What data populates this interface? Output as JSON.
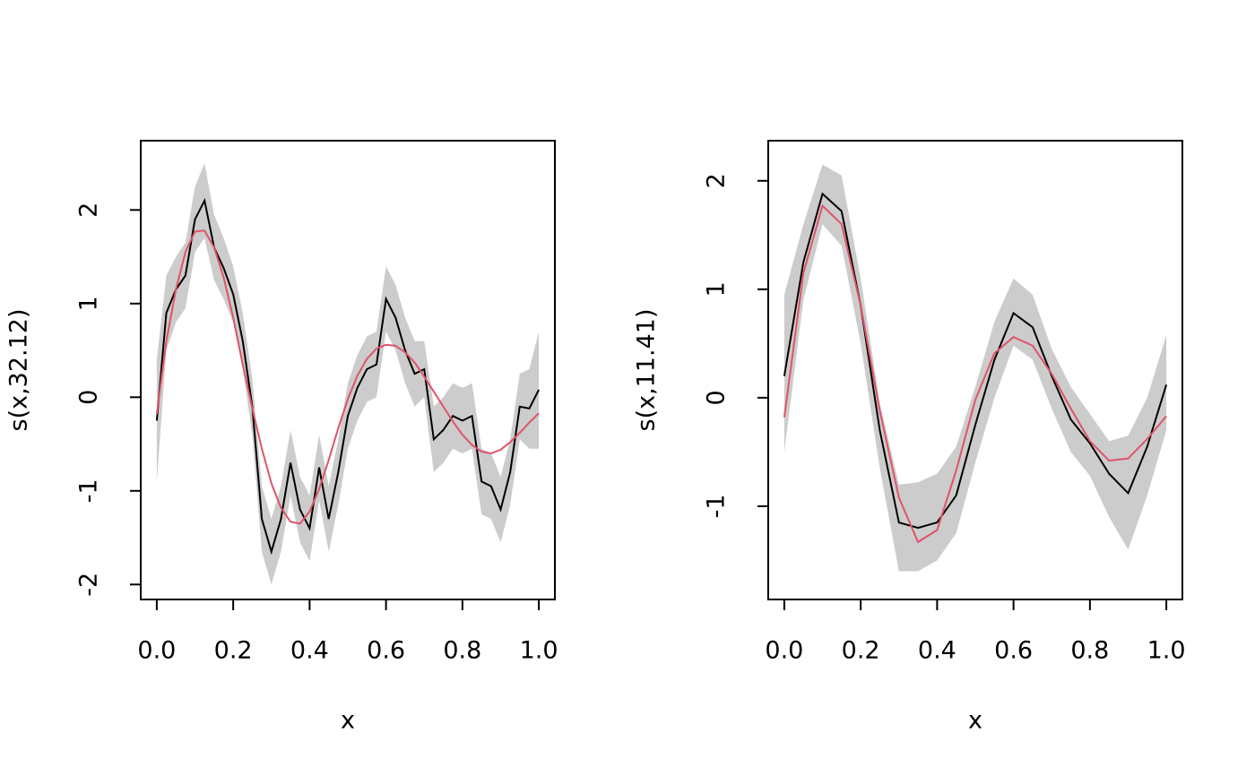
{
  "chart_data": [
    {
      "type": "line",
      "xlabel": "x",
      "ylabel": "s(x,32.12)",
      "x": [
        0,
        0.025,
        0.05,
        0.075,
        0.1,
        0.125,
        0.15,
        0.175,
        0.2,
        0.225,
        0.25,
        0.275,
        0.3,
        0.325,
        0.35,
        0.375,
        0.4,
        0.425,
        0.45,
        0.475,
        0.5,
        0.525,
        0.55,
        0.575,
        0.6,
        0.625,
        0.65,
        0.675,
        0.7,
        0.725,
        0.75,
        0.775,
        0.8,
        0.825,
        0.85,
        0.875,
        0.9,
        0.925,
        0.95,
        0.975,
        1
      ],
      "band": {
        "color": "#cccccc",
        "upper": [
          0.4,
          1.3,
          1.5,
          1.65,
          2.25,
          2.5,
          1.95,
          1.7,
          1.4,
          0.9,
          0.2,
          -0.95,
          -1.3,
          -0.95,
          -0.35,
          -0.85,
          -1.05,
          -0.4,
          -0.95,
          -0.45,
          0.15,
          0.45,
          0.65,
          0.7,
          1.4,
          1.2,
          0.85,
          0.6,
          0.6,
          -0.1,
          0.0,
          0.15,
          0.1,
          0.15,
          -0.55,
          -0.6,
          -0.85,
          -0.45,
          0.25,
          0.3,
          0.7
        ],
        "lower": [
          -0.9,
          0.5,
          0.8,
          0.95,
          1.55,
          1.7,
          1.25,
          1.05,
          0.8,
          0.3,
          -0.4,
          -1.65,
          -2.0,
          -1.65,
          -1.05,
          -1.55,
          -1.75,
          -1.1,
          -1.65,
          -1.15,
          -0.55,
          -0.25,
          -0.05,
          0.0,
          0.7,
          0.5,
          0.15,
          -0.1,
          0.0,
          -0.8,
          -0.7,
          -0.55,
          -0.6,
          -0.55,
          -1.25,
          -1.3,
          -1.55,
          -1.15,
          -0.45,
          -0.55,
          -0.55
        ]
      },
      "series": [
        {
          "color": "#000000",
          "values": [
            -0.25,
            0.9,
            1.15,
            1.3,
            1.9,
            2.1,
            1.6,
            1.38,
            1.1,
            0.6,
            -0.1,
            -1.3,
            -1.65,
            -1.3,
            -0.7,
            -1.2,
            -1.4,
            -0.75,
            -1.3,
            -0.8,
            -0.2,
            0.1,
            0.3,
            0.35,
            1.05,
            0.85,
            0.5,
            0.25,
            0.3,
            -0.45,
            -0.35,
            -0.2,
            -0.25,
            -0.2,
            -0.9,
            -0.95,
            -1.2,
            -0.8,
            -0.1,
            -0.12,
            0.08
          ]
        },
        {
          "color": "#df536b",
          "values": [
            -0.18,
            0.6,
            1.15,
            1.55,
            1.77,
            1.78,
            1.6,
            1.28,
            0.85,
            0.35,
            -0.12,
            -0.55,
            -0.92,
            -1.18,
            -1.33,
            -1.35,
            -1.22,
            -0.98,
            -0.67,
            -0.33,
            -0.02,
            0.23,
            0.41,
            0.52,
            0.56,
            0.55,
            0.48,
            0.37,
            0.22,
            0.06,
            -0.1,
            -0.26,
            -0.4,
            -0.51,
            -0.58,
            -0.6,
            -0.56,
            -0.48,
            -0.38,
            -0.27,
            -0.17
          ]
        }
      ],
      "xlim": [
        -0.042,
        1.042
      ],
      "ylim": [
        -2.16,
        2.74
      ],
      "xticks": [
        {
          "value": 0,
          "label": "0.0"
        },
        0.2,
        0.4,
        0.6,
        0.8,
        {
          "value": 1,
          "label": "1.0"
        }
      ],
      "yticks": [
        -2,
        -1,
        0,
        1,
        2
      ]
    },
    {
      "type": "line",
      "xlabel": "x",
      "ylabel": "s(x,11.41)",
      "x": [
        0,
        0.05,
        0.1,
        0.15,
        0.2,
        0.25,
        0.3,
        0.35,
        0.4,
        0.45,
        0.5,
        0.55,
        0.6,
        0.65,
        0.7,
        0.75,
        0.8,
        0.85,
        0.9,
        0.95,
        1
      ],
      "band": {
        "color": "#cccccc",
        "upper": [
          0.95,
          1.6,
          2.15,
          2.05,
          1.1,
          -0.05,
          -0.8,
          -0.78,
          -0.7,
          -0.45,
          0.1,
          0.7,
          1.1,
          0.95,
          0.45,
          0.1,
          -0.15,
          -0.4,
          -0.35,
          0.0,
          0.58
        ],
        "lower": [
          -0.5,
          0.9,
          1.6,
          1.4,
          0.5,
          -0.65,
          -1.6,
          -1.6,
          -1.5,
          -1.25,
          -0.6,
          0.0,
          0.48,
          0.35,
          -0.1,
          -0.5,
          -0.72,
          -1.1,
          -1.4,
          -0.9,
          -0.3
        ]
      },
      "series": [
        {
          "color": "#000000",
          "values": [
            0.2,
            1.25,
            1.88,
            1.72,
            0.85,
            -0.3,
            -1.15,
            -1.2,
            -1.15,
            -0.9,
            -0.25,
            0.35,
            0.78,
            0.65,
            0.2,
            -0.2,
            -0.42,
            -0.7,
            -0.88,
            -0.45,
            0.12
          ]
        },
        {
          "color": "#df536b",
          "values": [
            -0.18,
            1.15,
            1.77,
            1.6,
            0.85,
            -0.12,
            -0.92,
            -1.33,
            -1.22,
            -0.67,
            -0.02,
            0.41,
            0.56,
            0.48,
            0.22,
            -0.1,
            -0.4,
            -0.58,
            -0.56,
            -0.38,
            -0.17
          ]
        }
      ],
      "xlim": [
        -0.042,
        1.042
      ],
      "ylim": [
        -1.86,
        2.37
      ],
      "xticks": [
        {
          "value": 0,
          "label": "0.0"
        },
        0.2,
        0.4,
        0.6,
        0.8,
        {
          "value": 1,
          "label": "1.0"
        }
      ],
      "yticks": [
        -1,
        0,
        1,
        2
      ]
    }
  ]
}
